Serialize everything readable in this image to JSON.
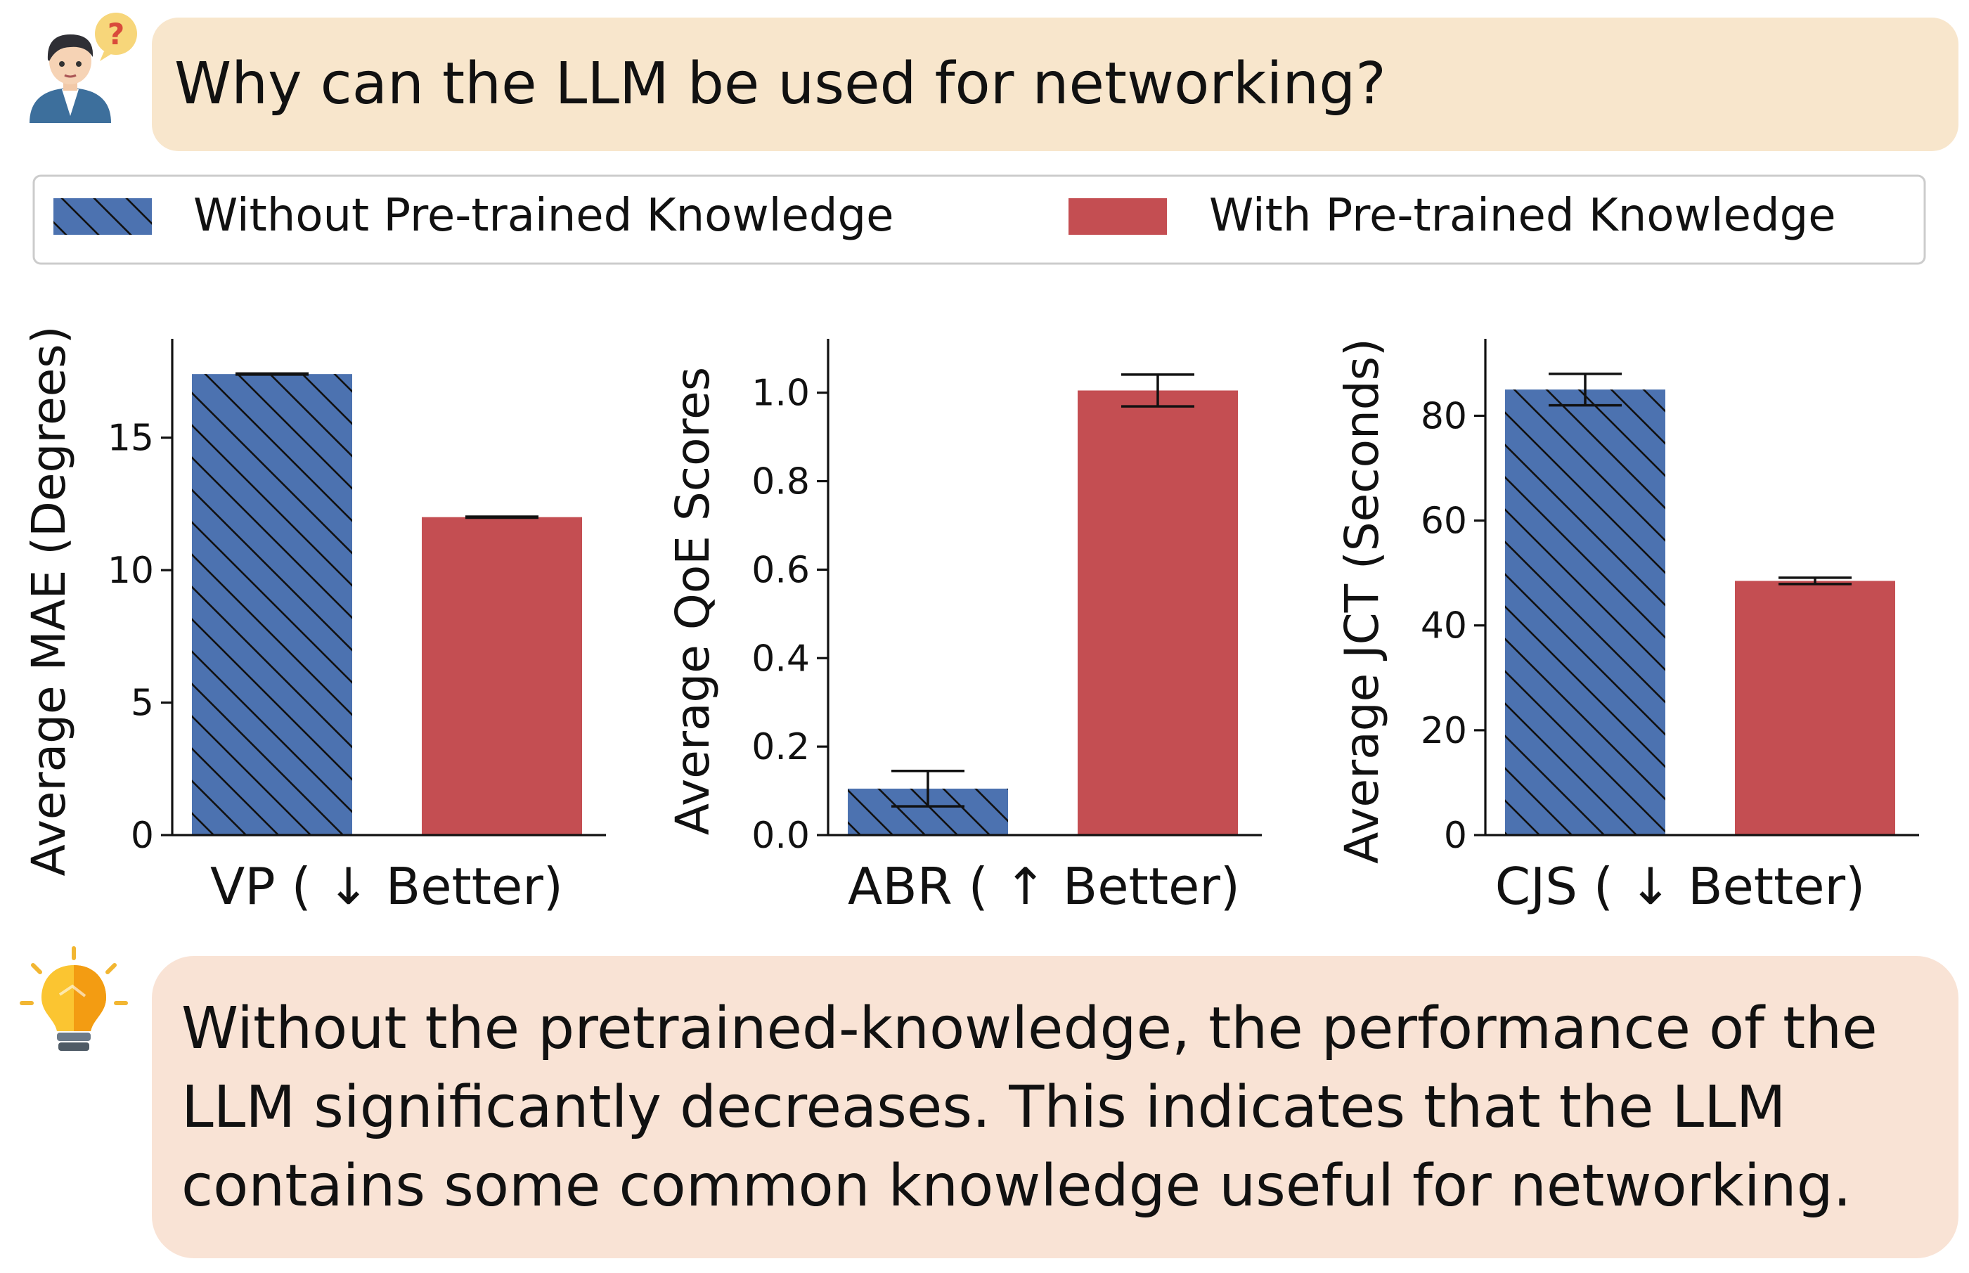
{
  "question": "Why can the LLM be used for networking?",
  "answer_lines": [
    "Without the pretrained-knowledge, the performance of the",
    "LLM significantly decreases. This indicates that the LLM",
    "contains some common knowledge useful for networking."
  ],
  "colors": {
    "without": "#4c72b0",
    "with": "#c44e52",
    "question_bg": "#f8e6cc",
    "answer_bg": "#f9e3d5"
  },
  "icons": {
    "avatar": "person-question-icon",
    "bulb": "lightbulb-icon"
  },
  "legend": [
    {
      "label": "Without Pre-trained Knowledge",
      "style": "hatched"
    },
    {
      "label": "With Pre-trained Knowledge",
      "style": "solid"
    }
  ],
  "chart_data": [
    {
      "type": "bar",
      "title": "",
      "xlabel": "VP ( ↓ Better)",
      "ylabel": "Average MAE (Degrees)",
      "ylim": [
        0,
        18.2
      ],
      "yticks": [
        0,
        5,
        10,
        15
      ],
      "ytick_labels": [
        "0",
        "5",
        "10",
        "15"
      ],
      "series": [
        {
          "name": "Without Pre-trained Knowledge",
          "value": 17.4,
          "err": 0.02
        },
        {
          "name": "With Pre-trained Knowledge",
          "value": 12.0,
          "err": 0.02
        }
      ]
    },
    {
      "type": "bar",
      "title": "",
      "xlabel": "ABR ( ↑ Better)",
      "ylabel": "Average QoE Scores",
      "ylim": [
        0,
        1.09
      ],
      "yticks": [
        0.0,
        0.2,
        0.4,
        0.6,
        0.8,
        1.0
      ],
      "ytick_labels": [
        "0.0",
        "0.2",
        "0.4",
        "0.6",
        "0.8",
        "1.0"
      ],
      "series": [
        {
          "name": "Without Pre-trained Knowledge",
          "value": 0.105,
          "err": 0.04
        },
        {
          "name": "With Pre-trained Knowledge",
          "value": 1.005,
          "err": 0.036
        }
      ]
    },
    {
      "type": "bar",
      "title": "",
      "xlabel": "CJS ( ↓ Better)",
      "ylabel": "Average JCT (Seconds)",
      "ylim": [
        0,
        92
      ],
      "yticks": [
        0,
        20,
        40,
        60,
        80
      ],
      "ytick_labels": [
        "0",
        "20",
        "40",
        "60",
        "80"
      ],
      "series": [
        {
          "name": "Without Pre-trained Knowledge",
          "value": 85.0,
          "err": 3.0
        },
        {
          "name": "With Pre-trained Knowledge",
          "value": 48.5,
          "err": 0.6
        }
      ]
    }
  ]
}
